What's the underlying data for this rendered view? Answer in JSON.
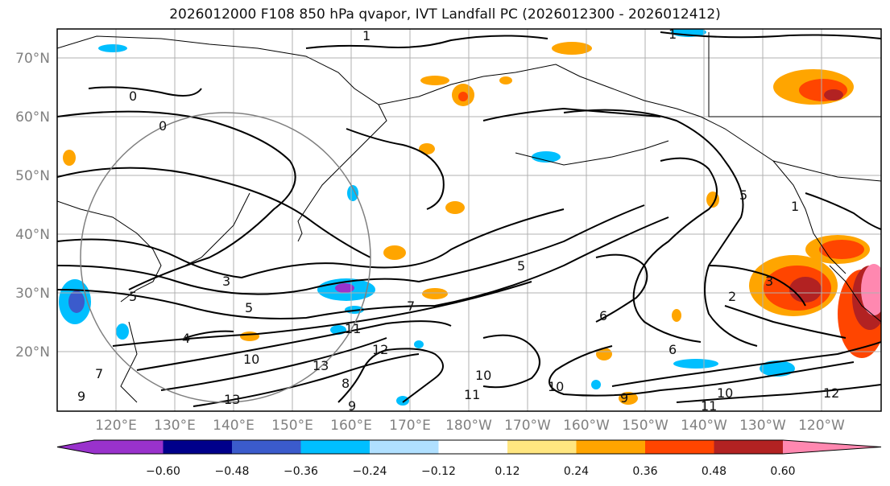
{
  "title": "2026012000 F108 850 hPa qvapor, IVT Landfall PC (2026012300 - 2026012412)",
  "map": {
    "lat_labels": [
      "70°N",
      "60°N",
      "50°N",
      "40°N",
      "30°N",
      "20°N"
    ],
    "lon_labels": [
      "120°E",
      "130°E",
      "140°E",
      "150°E",
      "160°E",
      "170°E",
      "180°W",
      "170°W",
      "160°W",
      "150°W",
      "140°W",
      "130°W",
      "120°W"
    ]
  },
  "colorbar": {
    "colors": [
      "#9932cc",
      "#00008b",
      "#3b5bcc",
      "#00bfff",
      "#b0e0ff",
      "#ffffff",
      "#ffe680",
      "#ffa500",
      "#ff4500",
      "#b22222",
      "#ff88b0"
    ],
    "ticks": [
      "−0.60",
      "−0.48",
      "−0.36",
      "−0.24",
      "−0.12",
      "0.12",
      "0.24",
      "0.36",
      "0.48",
      "0.60"
    ]
  },
  "contour_labels": [
    "1",
    "1",
    "0",
    "0",
    "3",
    "5",
    "5",
    "7",
    "4",
    "10",
    "11",
    "12",
    "13",
    "13",
    "8",
    "9",
    "10",
    "11",
    "10",
    "9",
    "6",
    "6",
    "5",
    "2",
    "3",
    "10",
    "11",
    "12",
    "5",
    "7",
    "9",
    "1"
  ]
}
